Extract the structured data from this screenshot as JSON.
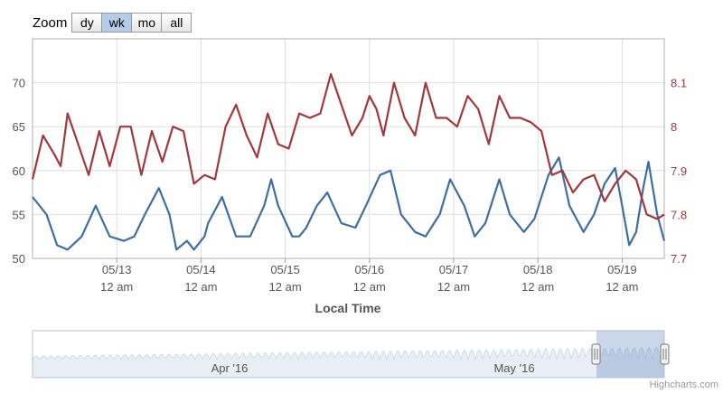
{
  "zoom": {
    "label": "Zoom",
    "buttons": [
      "dy",
      "wk",
      "mo",
      "all"
    ],
    "selected": "wk"
  },
  "chart_data": {
    "type": "line",
    "title": "",
    "xlabel": "Local Time",
    "x_ticks": [
      {
        "date": "05/13",
        "time": "12 am"
      },
      {
        "date": "05/14",
        "time": "12 am"
      },
      {
        "date": "05/15",
        "time": "12 am"
      },
      {
        "date": "05/16",
        "time": "12 am"
      },
      {
        "date": "05/17",
        "time": "12 am"
      },
      {
        "date": "05/18",
        "time": "12 am"
      },
      {
        "date": "05/19",
        "time": "12 am"
      }
    ],
    "xlim": [
      "2016-05-12 00:00",
      "2016-05-19 12:00"
    ],
    "grid": true,
    "y_left": {
      "ylim": [
        50,
        75
      ],
      "ticks": [
        50,
        55,
        60,
        65,
        70
      ],
      "color": "#555555"
    },
    "y_right": {
      "ylim": [
        7.7,
        8.2
      ],
      "ticks": [
        7.7,
        7.8,
        7.9,
        8,
        8.1
      ],
      "color": "#a0393d"
    },
    "series": [
      {
        "axis": "left",
        "color": "#3e6f9e",
        "x": [
          "05-12 00:00",
          "05-12 04:00",
          "05-12 07:00",
          "05-12 10:00",
          "05-12 14:00",
          "05-12 18:00",
          "05-12 22:00",
          "05-13 02:00",
          "05-13 05:00",
          "05-13 08:00",
          "05-13 12:00",
          "05-13 15:00",
          "05-13 17:00",
          "05-13 20:00",
          "05-13 22:00",
          "05-14 01:00",
          "05-14 02:00",
          "05-14 06:00",
          "05-14 10:00",
          "05-14 14:00",
          "05-14 18:00",
          "05-14 20:00",
          "05-14 22:00",
          "05-15 02:00",
          "05-15 04:00",
          "05-15 06:00",
          "05-15 09:00",
          "05-15 12:00",
          "05-15 16:00",
          "05-15 20:00",
          "05-15 23:00",
          "05-16 03:00",
          "05-16 06:00",
          "05-16 09:00",
          "05-16 13:00",
          "05-16 16:00",
          "05-16 20:00",
          "05-16 23:00",
          "05-17 03:00",
          "05-17 06:00",
          "05-17 09:00",
          "05-17 13:00",
          "05-17 16:00",
          "05-17 20:00",
          "05-17 23:00",
          "05-18 03:00",
          "05-18 06:00",
          "05-18 09:00",
          "05-18 13:00",
          "05-18 16:00",
          "05-18 19:00",
          "05-18 22:00",
          "05-19 00:00",
          "05-19 02:00",
          "05-19 04:00",
          "05-19 06:00",
          "05-19 07:30",
          "05-19 10:00",
          "05-19 12:00"
        ],
        "values": [
          57,
          55,
          51.5,
          51,
          52.5,
          56,
          52.5,
          52,
          52.5,
          55,
          58,
          55,
          51,
          52,
          51,
          52.5,
          54,
          57,
          52.5,
          52.5,
          56,
          59,
          56,
          52.5,
          52.5,
          53.5,
          56,
          57.5,
          54,
          53.5,
          56,
          59.5,
          60,
          55,
          53,
          52.5,
          55,
          59,
          56,
          52.5,
          54,
          59,
          55,
          53,
          54.5,
          59.5,
          61.5,
          56,
          53,
          55,
          58.5,
          60.3,
          56,
          51.5,
          53,
          58,
          61,
          55,
          52
        ]
      },
      {
        "axis": "right",
        "color": "#a0393d",
        "x": [
          "05-12 00:00",
          "05-12 03:00",
          "05-12 06:00",
          "05-12 08:00",
          "05-12 10:00",
          "05-12 13:00",
          "05-12 16:00",
          "05-12 19:00",
          "05-12 22:00",
          "05-13 01:00",
          "05-13 04:00",
          "05-13 07:00",
          "05-13 10:00",
          "05-13 13:00",
          "05-13 16:00",
          "05-13 19:00",
          "05-13 22:00",
          "05-14 01:00",
          "05-14 04:00",
          "05-14 07:00",
          "05-14 10:00",
          "05-14 13:00",
          "05-14 16:00",
          "05-14 19:00",
          "05-14 22:00",
          "05-15 01:00",
          "05-15 04:00",
          "05-15 07:00",
          "05-15 10:00",
          "05-15 13:00",
          "05-15 16:00",
          "05-15 19:00",
          "05-15 22:00",
          "05-16 00:00",
          "05-16 02:00",
          "05-16 04:00",
          "05-16 07:00",
          "05-16 10:00",
          "05-16 13:00",
          "05-16 16:00",
          "05-16 19:00",
          "05-16 22:00",
          "05-17 01:00",
          "05-17 04:00",
          "05-17 07:00",
          "05-17 10:00",
          "05-17 13:00",
          "05-17 16:00",
          "05-17 19:00",
          "05-17 22:00",
          "05-18 01:00",
          "05-18 04:00",
          "05-18 07:00",
          "05-18 10:00",
          "05-18 13:00",
          "05-18 16:00",
          "05-18 19:00",
          "05-18 22:00",
          "05-19 01:00",
          "05-19 04:00",
          "05-19 07:00",
          "05-19 10:00",
          "05-19 12:00"
        ],
        "values": [
          7.88,
          7.98,
          7.94,
          7.91,
          8.03,
          7.96,
          7.89,
          7.99,
          7.91,
          8.0,
          8.0,
          7.89,
          7.99,
          7.92,
          8.0,
          7.99,
          7.87,
          7.89,
          7.88,
          8.0,
          8.05,
          7.98,
          7.93,
          8.03,
          7.96,
          7.95,
          8.03,
          8.02,
          8.03,
          8.12,
          8.05,
          7.98,
          8.02,
          8.07,
          8.04,
          7.98,
          8.1,
          8.02,
          7.98,
          8.1,
          8.02,
          8.02,
          8.0,
          8.07,
          8.04,
          7.96,
          8.07,
          8.02,
          8.02,
          8.01,
          7.99,
          7.89,
          7.9,
          7.85,
          7.88,
          7.89,
          7.83,
          7.87,
          7.9,
          7.88,
          7.8,
          7.79,
          7.8
        ]
      }
    ]
  },
  "navigator": {
    "labels": [
      "Apr '16",
      "May '16"
    ]
  },
  "credits": "Highcharts.com"
}
